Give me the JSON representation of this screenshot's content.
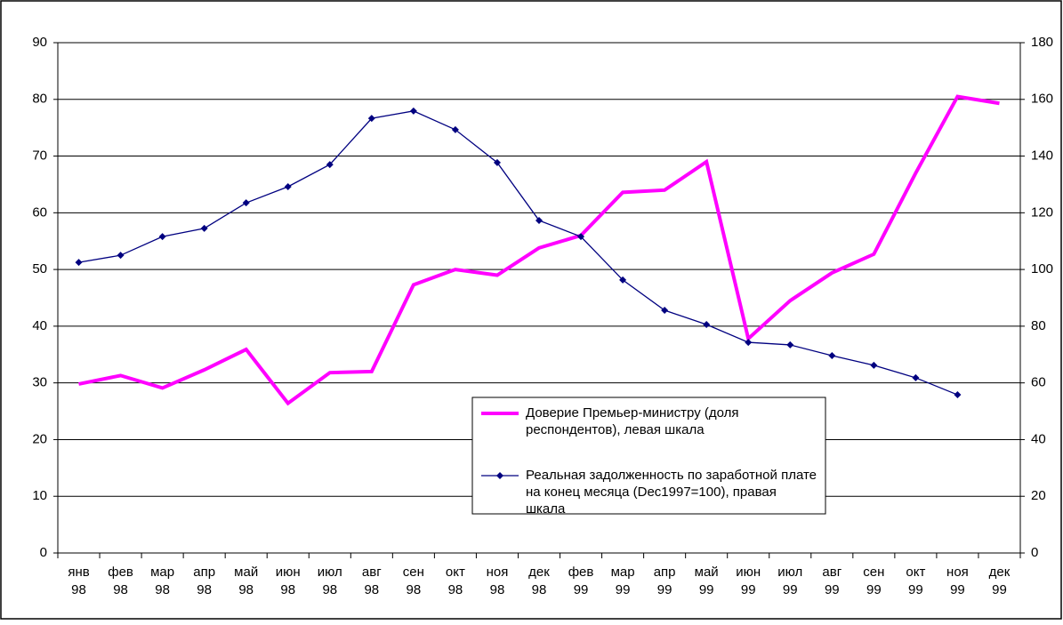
{
  "chart_data": {
    "type": "line",
    "categories": [
      [
        "янв",
        "98"
      ],
      [
        "фев",
        "98"
      ],
      [
        "мар",
        "98"
      ],
      [
        "апр",
        "98"
      ],
      [
        "май",
        "98"
      ],
      [
        "июн",
        "98"
      ],
      [
        "июл",
        "98"
      ],
      [
        "авг",
        "98"
      ],
      [
        "сен",
        "98"
      ],
      [
        "окт",
        "98"
      ],
      [
        "ноя",
        "98"
      ],
      [
        "дек",
        "98"
      ],
      [
        "фев",
        "99"
      ],
      [
        "мар",
        "99"
      ],
      [
        "апр",
        "99"
      ],
      [
        "май",
        "99"
      ],
      [
        "июн",
        "99"
      ],
      [
        "июл",
        "99"
      ],
      [
        "авг",
        "99"
      ],
      [
        "сен",
        "99"
      ],
      [
        "окт",
        "99"
      ],
      [
        "ноя",
        "99"
      ],
      [
        "дек",
        "99"
      ]
    ],
    "series": [
      {
        "name": "Доверие Премьер-министру (доля респондентов), левая шкала",
        "color": "#ff00ff",
        "axis": "y",
        "values": [
          29.8,
          31.3,
          29.1,
          32.3,
          35.9,
          26.4,
          31.8,
          32.0,
          47.3,
          50.0,
          49.0,
          53.8,
          56.0,
          63.6,
          64.0,
          69.0,
          37.8,
          44.5,
          49.4,
          52.7,
          67.0,
          80.5,
          79.3
        ]
      },
      {
        "name": "Реальная задолженность по заработной плате на конец месяца (Dec1997=100), правая шкала",
        "color": "#000080",
        "axis": "y2",
        "values": [
          102.5,
          105,
          111.6,
          114.5,
          123.5,
          129.2,
          137,
          153.3,
          155.9,
          149.3,
          137.7,
          117.3,
          111.6,
          96.3,
          85.6,
          80.6,
          74.3,
          73.4,
          69.6,
          66.2,
          61.8,
          55.8,
          null
        ]
      }
    ],
    "ylim": [
      0,
      90
    ],
    "yticks": [
      0,
      10,
      20,
      30,
      40,
      50,
      60,
      70,
      80,
      90
    ],
    "y2lim": [
      0,
      180
    ],
    "y2ticks": [
      0,
      20,
      40,
      60,
      80,
      100,
      120,
      140,
      160,
      180
    ],
    "grid": true
  }
}
